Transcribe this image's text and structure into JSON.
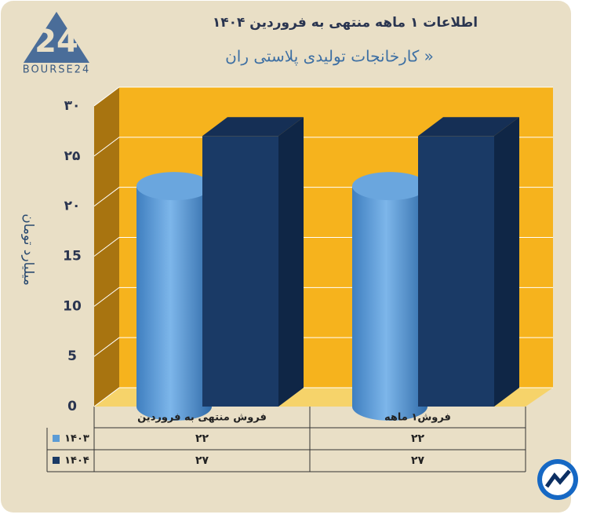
{
  "logo": "BOURSE24",
  "chart_data": {
    "type": "bar3d",
    "title": "اطلاعات ۱ ماهه منتهی به فروردین ۱۴۰۴",
    "subtitle": "کارخانجات تولیدی پلاستی ران »",
    "y_label": "میلیارد تومان",
    "categories": [
      "فروش منتهی به  فروردین",
      "فروش۱  ماهه"
    ],
    "series": [
      {
        "name": "۱۴۰۳",
        "color": "#5b9bd5",
        "shape": "cylinder",
        "values": [
          22,
          22
        ],
        "value_labels": [
          "۲۲",
          "۲۲"
        ]
      },
      {
        "name": "۱۴۰۴",
        "color": "#1a3a66",
        "shape": "box",
        "values": [
          27,
          27
        ],
        "value_labels": [
          "۲۷",
          "۲۷"
        ]
      }
    ],
    "ylim": [
      0,
      30
    ],
    "yticks": [
      0,
      5,
      10,
      15,
      {
        "value": 20,
        "label": "۲۰"
      },
      {
        "value": 25,
        "label": "۲۵"
      },
      {
        "value": 30,
        "label": "۳۰"
      }
    ],
    "grid": true
  }
}
